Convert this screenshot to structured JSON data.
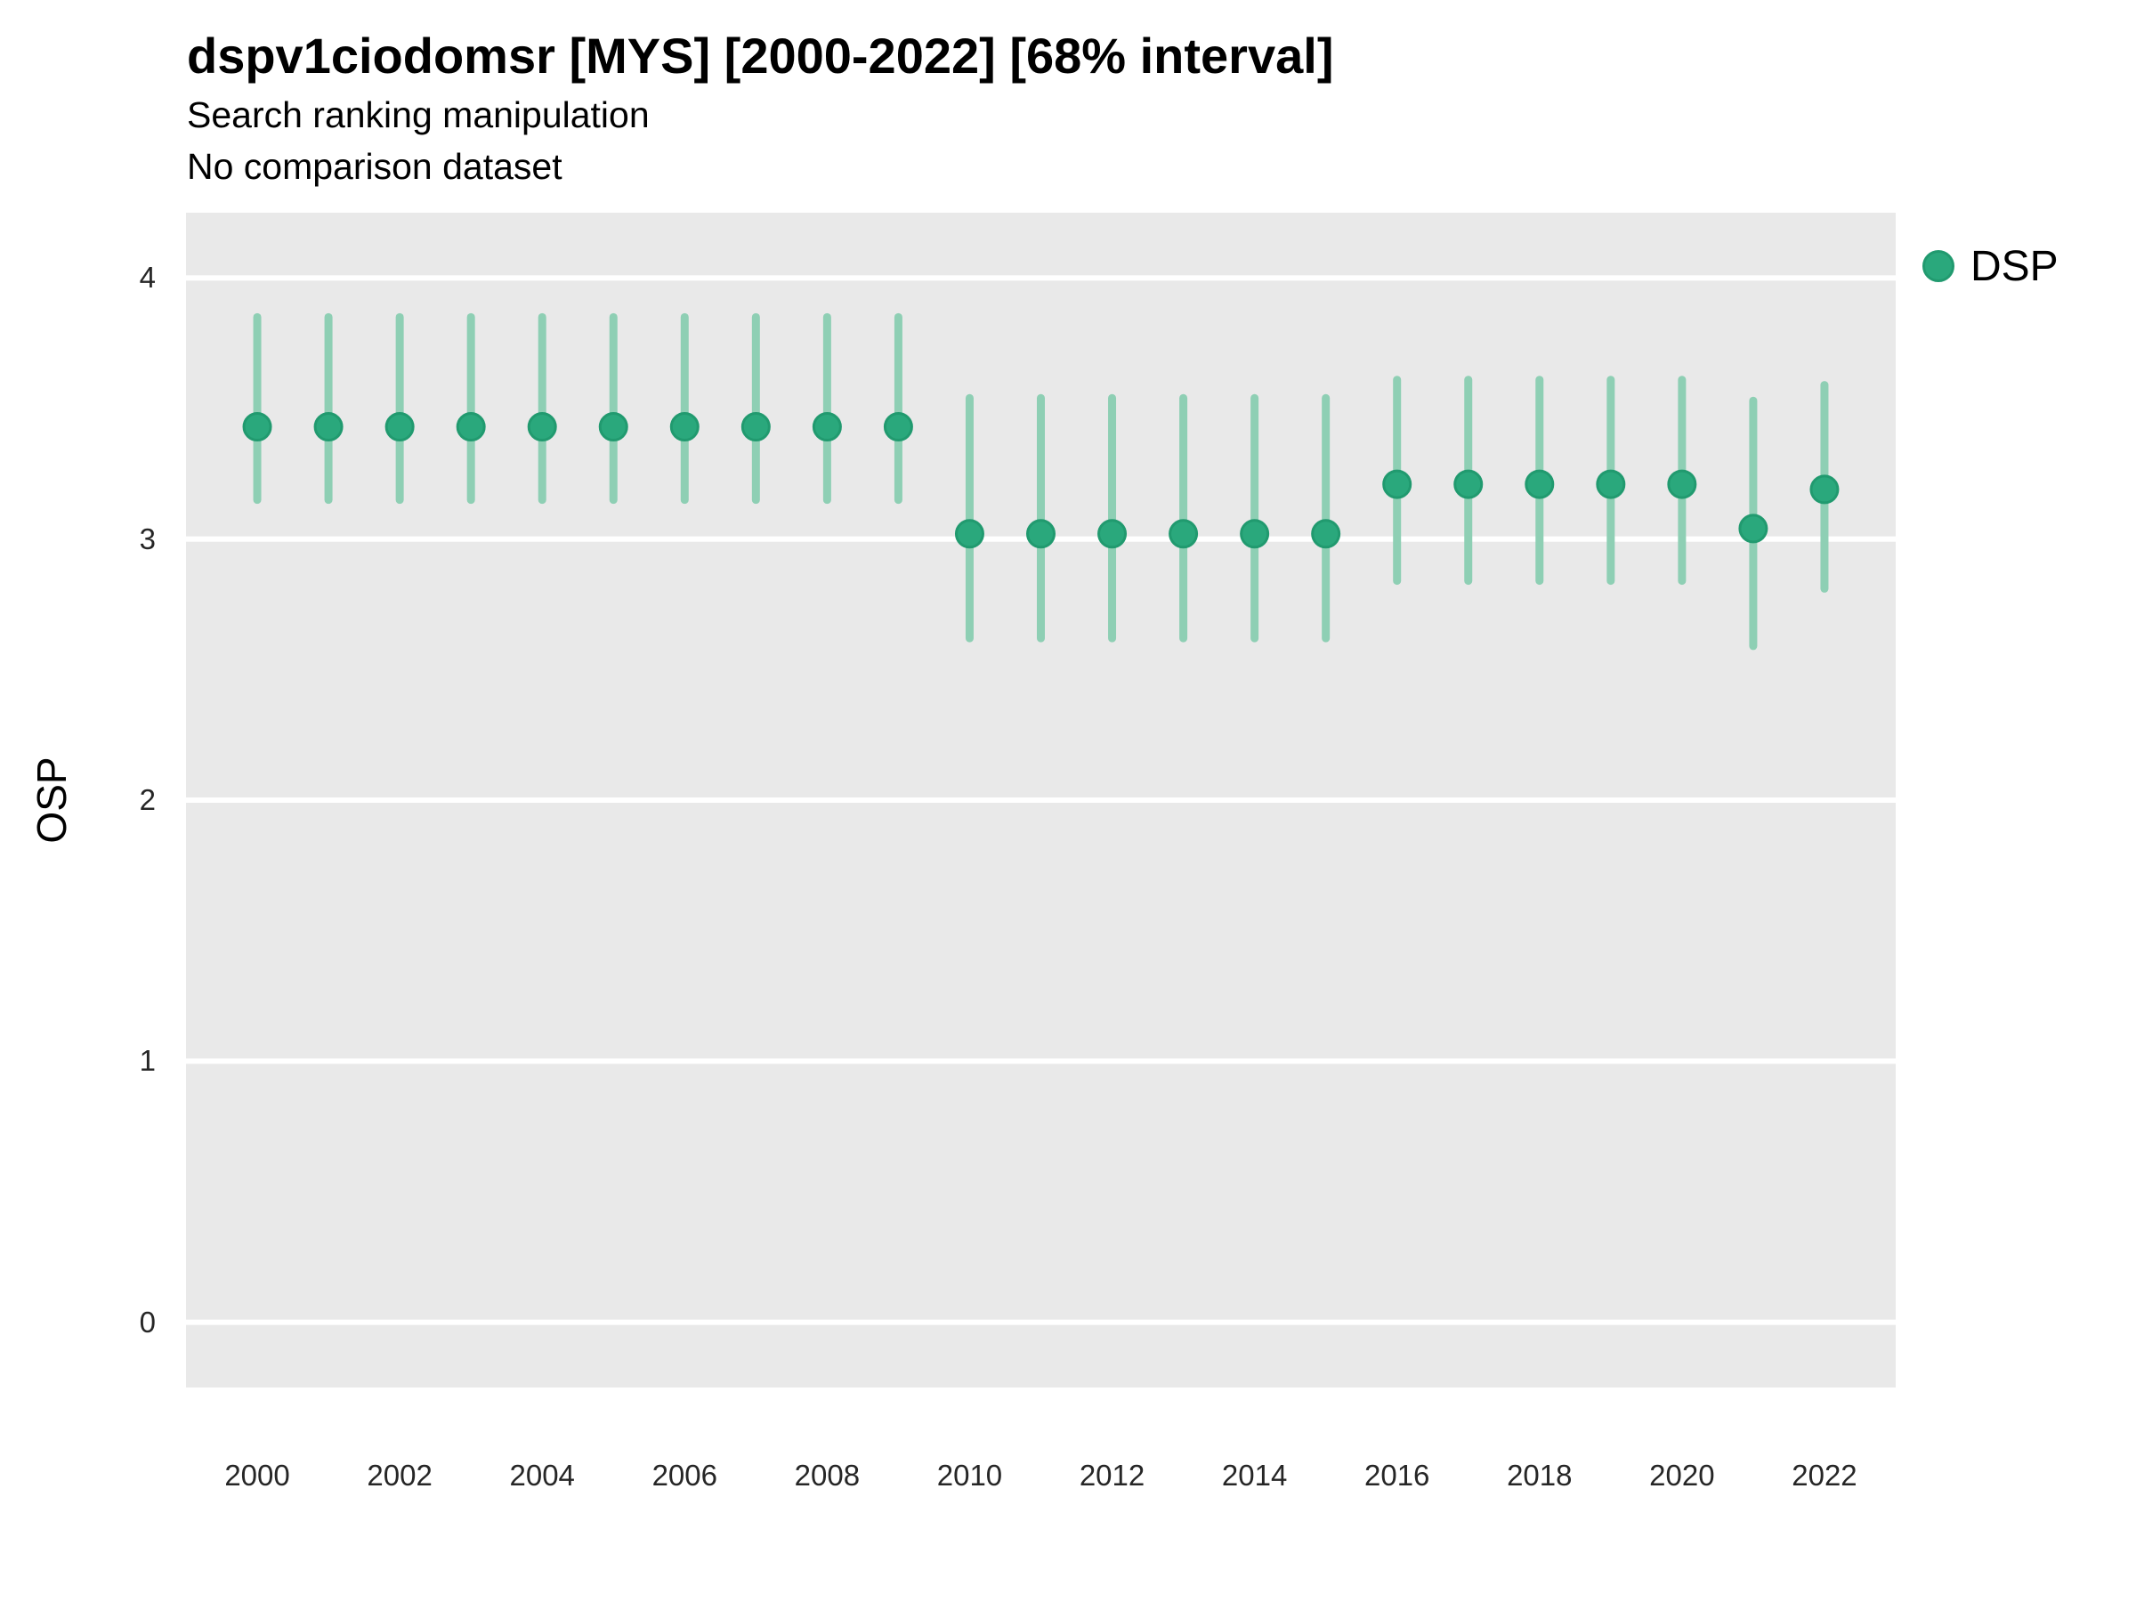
{
  "header": {
    "title": "dspv1ciodomsr [MYS] [2000-2022] [68% interval]",
    "subtitle": "Search ranking manipulation",
    "note": "No comparison dataset"
  },
  "legend": {
    "label": "DSP"
  },
  "colors": {
    "point": "#2aa87c",
    "point_stroke": "#219a6f",
    "interval": "#8ecfb4",
    "grid": "#ffffff",
    "panel_bg": "#e9e9e9",
    "axis_text": "#262626"
  },
  "chart_data": {
    "type": "scatter",
    "title": "dspv1ciodomsr [MYS] [2000-2022] [68% interval]",
    "subtitle": "Search ranking manipulation",
    "note": "No comparison dataset",
    "xlabel": "",
    "ylabel": "OSP",
    "legend_position": "right",
    "grid": "major-horizontal",
    "xlim": [
      1999,
      2023
    ],
    "ylim": [
      -0.25,
      4.25
    ],
    "x_ticks": [
      2000,
      2002,
      2004,
      2006,
      2008,
      2010,
      2012,
      2014,
      2016,
      2018,
      2020,
      2022
    ],
    "y_ticks": [
      0,
      1,
      2,
      3,
      4
    ],
    "series": [
      {
        "name": "DSP",
        "x": [
          2000,
          2001,
          2002,
          2003,
          2004,
          2005,
          2006,
          2007,
          2008,
          2009,
          2010,
          2011,
          2012,
          2013,
          2014,
          2015,
          2016,
          2017,
          2018,
          2019,
          2020,
          2021,
          2022
        ],
        "est": [
          3.43,
          3.43,
          3.43,
          3.43,
          3.43,
          3.43,
          3.43,
          3.43,
          3.43,
          3.43,
          3.02,
          3.02,
          3.02,
          3.02,
          3.02,
          3.02,
          3.21,
          3.21,
          3.21,
          3.21,
          3.21,
          3.04,
          3.19
        ],
        "lo": [
          3.15,
          3.15,
          3.15,
          3.15,
          3.15,
          3.15,
          3.15,
          3.15,
          3.15,
          3.15,
          2.62,
          2.62,
          2.62,
          2.62,
          2.62,
          2.62,
          2.84,
          2.84,
          2.84,
          2.84,
          2.84,
          2.59,
          2.81
        ],
        "hi": [
          3.85,
          3.85,
          3.85,
          3.85,
          3.85,
          3.85,
          3.85,
          3.85,
          3.85,
          3.85,
          3.54,
          3.54,
          3.54,
          3.54,
          3.54,
          3.54,
          3.61,
          3.61,
          3.61,
          3.61,
          3.61,
          3.53,
          3.59
        ]
      }
    ]
  }
}
